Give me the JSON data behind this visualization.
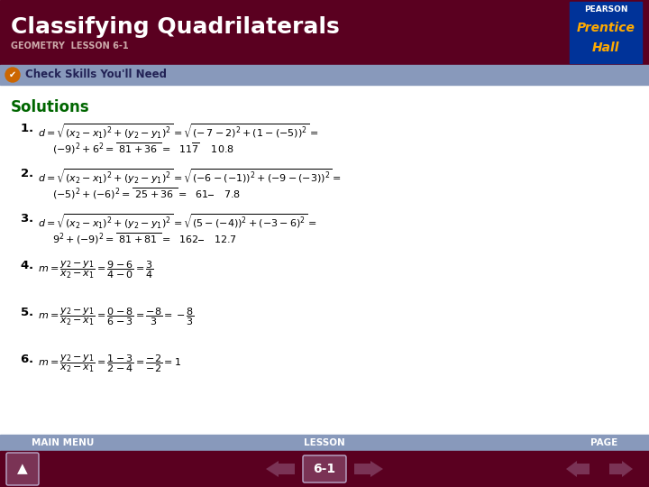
{
  "title": "Classifying Quadrilaterals",
  "subtitle": "GEOMETRY  LESSON 6-1",
  "header_bg": "#5a0020",
  "header_text_color": "#ffffff",
  "tab_bg": "#8899bb",
  "tab_text": "Check Skills You'll Need",
  "tab_icon_color": "#cc6600",
  "solutions_color": "#006600",
  "solutions_label": "Solutions",
  "footer_bg": "#5a0020",
  "footer_tab_bg": "#8899bb",
  "footer_labels": [
    "MAIN MENU",
    "LESSON",
    "PAGE"
  ],
  "footer_page": "6-1",
  "body_bg": "#ffffff",
  "pearson_box_bg": "#003399",
  "pearson_text": "PEARSON",
  "prentice_text": "Prentice",
  "hall_text": "Hall",
  "btn_color": "#7a3355",
  "btn_edge": "#bbaacc"
}
